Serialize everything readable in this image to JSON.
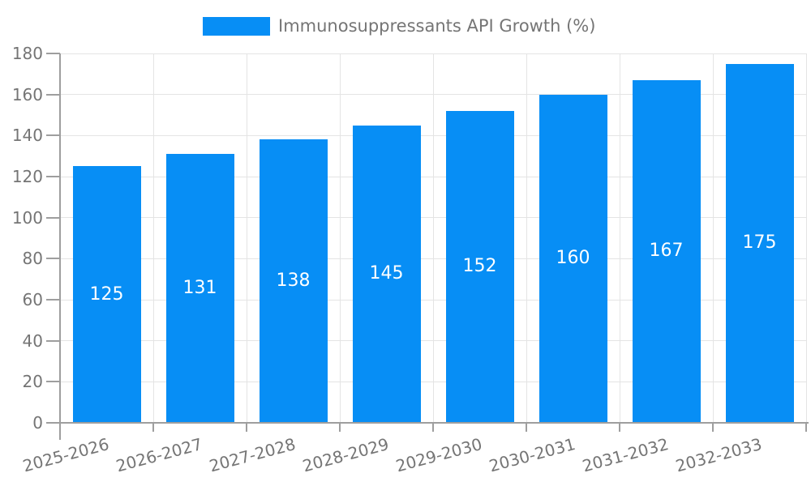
{
  "chart_data": {
    "type": "bar",
    "title": "Immunosuppressants API Growth (%)",
    "legend_entries": [
      "Immunosuppressants API Growth (%)"
    ],
    "legend_position": "top-center",
    "categories": [
      "2025-2026",
      "2026-2027",
      "2027-2028",
      "2028-2029",
      "2029-2030",
      "2030-2031",
      "2031-2032",
      "2032-2033"
    ],
    "values": [
      125,
      131,
      138,
      145,
      152,
      160,
      167,
      175
    ],
    "xlabel": "",
    "ylabel": "",
    "ylim": [
      0,
      180
    ],
    "yticks": [
      0,
      20,
      40,
      60,
      80,
      100,
      120,
      140,
      160,
      180
    ],
    "grid": true,
    "value_labels_inside_bars": true,
    "x_tick_label_rotation_deg": -15,
    "colors": {
      "bar": "#078EF5",
      "grid": "#e4e4e4",
      "axis": "#9e9e9e",
      "tick_text": "#757575",
      "value_label_text": "#ffffff",
      "background": "#ffffff"
    }
  }
}
